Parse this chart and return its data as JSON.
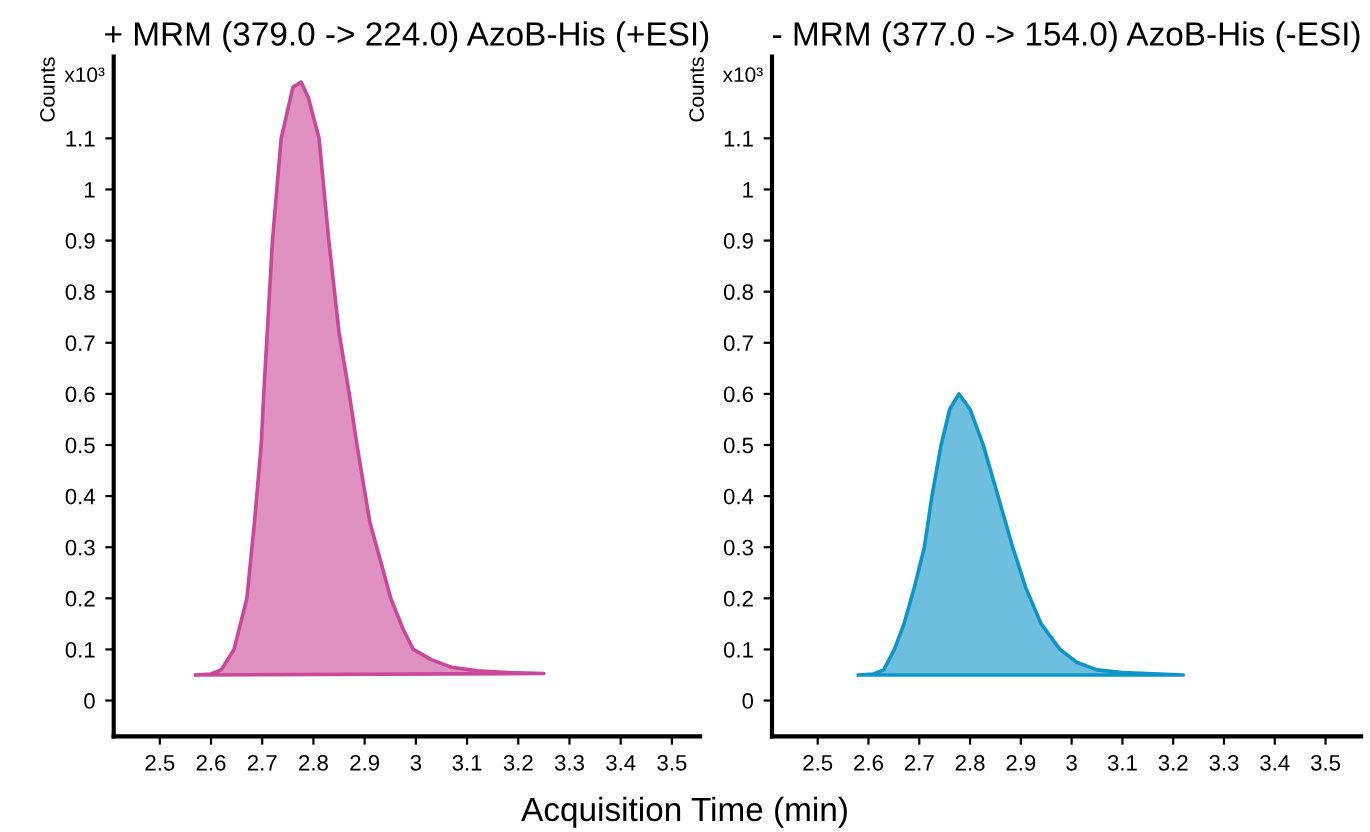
{
  "chart_data": [
    {
      "type": "area",
      "title": "+ MRM (379.0 -> 224.0) AzoB-His (+ESI)",
      "ylabel": "Counts",
      "xlabel": "Acquisition Time (min)",
      "annotations": [
        "x10³"
      ],
      "series": [
        {
          "color": "#c9489a",
          "x": [
            2.57,
            2.6,
            2.62,
            2.645,
            2.67,
            2.685,
            2.698,
            2.703,
            2.72,
            2.737,
            2.76,
            2.776,
            2.79,
            2.811,
            2.83,
            2.85,
            2.87,
            2.885,
            2.91,
            2.951,
            2.975,
            2.995,
            3.03,
            3.07,
            3.12,
            3.18,
            3.25
          ],
          "values": [
            0.05,
            0.052,
            0.06,
            0.1,
            0.2,
            0.35,
            0.5,
            0.6,
            0.9,
            1.1,
            1.2,
            1.21,
            1.18,
            1.1,
            0.9,
            0.72,
            0.6,
            0.5,
            0.35,
            0.2,
            0.14,
            0.1,
            0.08,
            0.065,
            0.058,
            0.055,
            0.053
          ]
        }
      ],
      "xlim": [
        2.41,
        3.555
      ],
      "ylim": [
        -0.07,
        1.26
      ],
      "xticks": [
        2.5,
        2.6,
        2.7,
        2.8,
        2.9,
        3,
        3.1,
        3.2,
        3.3,
        3.4,
        3.5
      ],
      "yticks": [
        0,
        0.1,
        0.2,
        0.3,
        0.4,
        0.5,
        0.6,
        0.7,
        0.8,
        0.9,
        1,
        1.1
      ],
      "grid": false,
      "legend": false
    },
    {
      "type": "area",
      "title": "- MRM (377.0 -> 154.0) AzoB-His (-ESI)",
      "ylabel": "Counts",
      "annotations": [
        "x10³"
      ],
      "series": [
        {
          "color": "#0e95c8",
          "x": [
            2.58,
            2.61,
            2.63,
            2.651,
            2.67,
            2.69,
            2.71,
            2.725,
            2.743,
            2.76,
            2.778,
            2.8,
            2.826,
            2.855,
            2.884,
            2.91,
            2.94,
            2.977,
            3.01,
            3.05,
            3.1,
            3.22
          ],
          "values": [
            0.05,
            0.052,
            0.06,
            0.1,
            0.15,
            0.22,
            0.3,
            0.4,
            0.5,
            0.57,
            0.6,
            0.57,
            0.5,
            0.4,
            0.3,
            0.22,
            0.15,
            0.1,
            0.075,
            0.06,
            0.055,
            0.05
          ]
        }
      ],
      "xlim": [
        2.41,
        3.57
      ],
      "ylim": [
        -0.07,
        1.26
      ],
      "xticks": [
        2.5,
        2.6,
        2.7,
        2.8,
        2.9,
        3,
        3.1,
        3.2,
        3.3,
        3.4,
        3.5
      ],
      "yticks": [
        0,
        0.1,
        0.2,
        0.3,
        0.4,
        0.5,
        0.6,
        0.7,
        0.8,
        0.9,
        1,
        1.1
      ],
      "grid": false,
      "legend": false
    }
  ]
}
